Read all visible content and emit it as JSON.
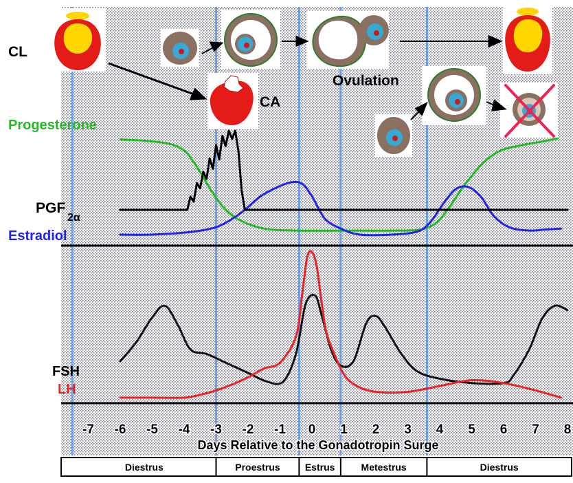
{
  "labels": {
    "cl": "CL",
    "ca": "CA",
    "ovulation": "Ovulation",
    "progesterone": "Progesterone",
    "pgf_main": "PGF",
    "pgf_sub": "2α",
    "estradiol": "Estradiol",
    "fsh": "FSH",
    "lh": "LH",
    "xlabel": "Days Relative to the Gonadotropin  Surge"
  },
  "colors": {
    "progesterone": "#22bb22",
    "estradiol": "#2222ee",
    "pgf": "#000000",
    "fsh": "#111111",
    "lh": "#ee2222",
    "phase_divider": "#6699ee",
    "corpus_luteum_outer": "#e41b17",
    "corpus_luteum_inner": "#ffd700",
    "follicle_wall": "#8a7060",
    "follicle_antrum": "#ffffff",
    "oocyte": "#36a9d4",
    "nucleus": "#d01818"
  },
  "chart_data": {
    "type": "line",
    "x_unit": "days relative to gonadotropin surge",
    "xlim": [
      -7.5,
      8
    ],
    "x_ticks": [
      "-7",
      "-6",
      "-5",
      "-4",
      "-3",
      "-2",
      "-1",
      "0",
      "1",
      "2",
      "3",
      "4",
      "5",
      "6",
      "7",
      "8"
    ],
    "phases": [
      {
        "name": "Diestrus",
        "start": -7.5,
        "end": -3
      },
      {
        "name": "Proestrus",
        "start": -3,
        "end": -0.4
      },
      {
        "name": "Estrus",
        "start": -0.4,
        "end": 0.9
      },
      {
        "name": "Metestrus",
        "start": 0.9,
        "end": 3.6
      },
      {
        "name": "Diestrus",
        "start": 3.6,
        "end": 8
      }
    ],
    "series": [
      {
        "name": "Progesterone",
        "panel": "top",
        "x": [
          -6,
          -5.3,
          -4.5,
          -4,
          -3.6,
          -3.2,
          -2.8,
          -2.3,
          -1.5,
          -0.5,
          1,
          2.5,
          3.4,
          3.9,
          4.3,
          4.8,
          5.4,
          5.9,
          6.5,
          7.2,
          7.7
        ],
        "y": [
          0.94,
          0.93,
          0.9,
          0.83,
          0.67,
          0.46,
          0.28,
          0.15,
          0.06,
          0.04,
          0.04,
          0.04,
          0.05,
          0.12,
          0.27,
          0.5,
          0.72,
          0.83,
          0.88,
          0.92,
          0.95
        ]
      },
      {
        "name": "Estradiol",
        "panel": "top",
        "x": [
          -6,
          -5,
          -4,
          -3.3,
          -2.8,
          -2.2,
          -1.6,
          -1,
          -0.6,
          -0.3,
          0,
          0.4,
          0.9,
          1.5,
          2.5,
          3.3,
          3.7,
          4.1,
          4.5,
          4.9,
          5.3,
          5.7,
          6.2,
          6.8,
          7.3,
          7.8
        ],
        "y": [
          0.0,
          0.0,
          0.02,
          0.05,
          0.1,
          0.22,
          0.38,
          0.48,
          0.52,
          0.5,
          0.38,
          0.16,
          0.06,
          0.0,
          0.0,
          0.03,
          0.12,
          0.3,
          0.45,
          0.47,
          0.37,
          0.18,
          0.07,
          0.04,
          0.05,
          0.06
        ]
      },
      {
        "name": "PGF2α",
        "panel": "top",
        "x": [
          -6,
          -3.9,
          -3.8,
          -3.7,
          -3.6,
          -3.5,
          -3.4,
          -3.3,
          -3.2,
          -3.1,
          -3.0,
          -2.9,
          -2.8,
          -2.7,
          -2.6,
          -2.5,
          -2.4,
          -2.3,
          -2.2,
          -2.1,
          8
        ],
        "y": [
          0.23,
          0.23,
          0.36,
          0.31,
          0.49,
          0.44,
          0.6,
          0.53,
          0.73,
          0.63,
          0.86,
          0.72,
          0.95,
          0.85,
          1.0,
          0.92,
          1.0,
          0.8,
          0.42,
          0.23,
          0.23
        ]
      },
      {
        "name": "FSH",
        "panel": "bottom",
        "x": [
          -6,
          -5.5,
          -5,
          -4.6,
          -4.2,
          -3.8,
          -3.3,
          -2.7,
          -2,
          -1.4,
          -0.9,
          -0.5,
          -0.2,
          0.1,
          0.3,
          0.6,
          0.9,
          1.3,
          1.7,
          2.0,
          2.3,
          2.8,
          3.3,
          4,
          5,
          6,
          6.3,
          6.8,
          7.2,
          7.6,
          8
        ],
        "y": [
          0.25,
          0.38,
          0.55,
          0.63,
          0.5,
          0.33,
          0.3,
          0.24,
          0.17,
          0.11,
          0.11,
          0.3,
          0.64,
          0.7,
          0.57,
          0.33,
          0.22,
          0.25,
          0.51,
          0.56,
          0.48,
          0.3,
          0.18,
          0.13,
          0.1,
          0.1,
          0.15,
          0.33,
          0.54,
          0.63,
          0.6
        ]
      },
      {
        "name": "LH",
        "panel": "bottom",
        "x": [
          -6,
          -5,
          -4,
          -3.5,
          -3,
          -2.5,
          -2,
          -1.5,
          -1,
          -0.5,
          -0.3,
          -0.15,
          0,
          0.15,
          0.3,
          0.45,
          0.7,
          1,
          1.4,
          2,
          3,
          4,
          5,
          6,
          7,
          7.8
        ],
        "y": [
          0.0,
          0.0,
          0.0,
          0.02,
          0.05,
          0.09,
          0.14,
          0.2,
          0.24,
          0.42,
          0.72,
          0.96,
          1.0,
          0.9,
          0.66,
          0.45,
          0.3,
          0.16,
          0.08,
          0.04,
          0.04,
          0.08,
          0.12,
          0.1,
          0.05,
          0.0
        ]
      }
    ],
    "annotations": [
      "CL",
      "CA",
      "Ovulation"
    ]
  }
}
